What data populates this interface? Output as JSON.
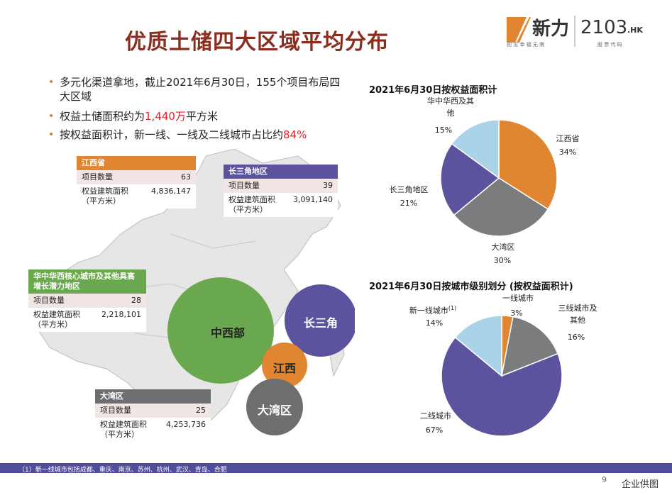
{
  "title": "优质土储四大区域平均分布",
  "logo": {
    "brand": "新力",
    "brand_sub": "创 见 幸 福 无 限",
    "code": "2103",
    "code_suffix": ".HK",
    "code_sub": "股 票 代 码"
  },
  "bullets": [
    {
      "parts": [
        "多元化渠道拿地，截止2021年6月30日，155个项目布局四大区域"
      ]
    },
    {
      "before": "权益土储面积约为",
      "highlight": "1,440万",
      "after": "平方米"
    },
    {
      "before": "按权益面积计，新一线、一线及二线城市占比约",
      "highlight": "84%",
      "after": ""
    }
  ],
  "boxes": {
    "jiangxi": {
      "header": "江西省",
      "row1_label": "项目数量",
      "row1_value": "63",
      "row2_label": "权益建筑面积\n（平方米）",
      "row2_value": "4,836,147",
      "color": "#e08530"
    },
    "yangtze": {
      "header": "长三角地区",
      "row1_label": "项目数量",
      "row1_value": "39",
      "row2_label": "权益建筑面积\n（平方米）",
      "row2_value": "3,091,140",
      "color": "#5b539e"
    },
    "central": {
      "header": "华中华西核心城市及其他具高增长潜力地区",
      "row1_label": "项目数量",
      "row1_value": "28",
      "row2_label": "权益建筑面积\n（平方米）",
      "row2_value": "2,218,101",
      "color": "#6aa84f"
    },
    "bay": {
      "header": "大湾区",
      "row1_label": "项目数量",
      "row1_value": "25",
      "row2_label": "权益建筑面积\n（平方米）",
      "row2_value": "4,253,736",
      "color": "#6d6e70"
    }
  },
  "bubbles": {
    "central": "中西部",
    "yangtze": "长三角",
    "jiangxi": "江西",
    "bay": "大湾区"
  },
  "chart_data": [
    {
      "type": "pie",
      "title": "2021年6月30日按权益面积计",
      "categories": [
        "江西省",
        "大湾区",
        "长三角地区",
        "华中华西及其他"
      ],
      "values": [
        34,
        30,
        21,
        15
      ],
      "labels": [
        "34%",
        "30%",
        "21%",
        "15%"
      ],
      "colors": [
        "#e08530",
        "#7a7c7d",
        "#5b539e",
        "#a9d3e8"
      ]
    },
    {
      "type": "pie",
      "title": "2021年6月30日按城市级别划分 (按权益面积计)",
      "categories": [
        "一线城市",
        "三线城市及其他",
        "二线城市",
        "新一线城市"
      ],
      "values": [
        3,
        16,
        67,
        14
      ],
      "labels": [
        "3%",
        "16%",
        "67%",
        "14%"
      ],
      "colors": [
        "#e08530",
        "#7a7c7d",
        "#5b539e",
        "#a9d3e8"
      ]
    }
  ],
  "pie1_labels": {
    "jiangxi": "江西省",
    "jiangxi_pct": "34%",
    "bay": "大湾区",
    "bay_pct": "30%",
    "yangtze": "长三角地区",
    "yangtze_pct": "21%",
    "other": "华中华西及其\n他",
    "other_pct": "15%"
  },
  "pie2_labels": {
    "tier1": "一线城市",
    "tier1_pct": "3%",
    "tier3": "三线城市及\n其他",
    "tier3_pct": "16%",
    "tier2": "二线城市",
    "tier2_pct": "67%",
    "newtier1": "新一线城市",
    "newtier1_sup": "(1)",
    "newtier1_pct": "14%"
  },
  "footnote": "（1）新一线城市包括成都、重庆、南京、苏州、杭州、武汉、青岛、合肥",
  "page_number": "9",
  "watermark": "企业供图"
}
